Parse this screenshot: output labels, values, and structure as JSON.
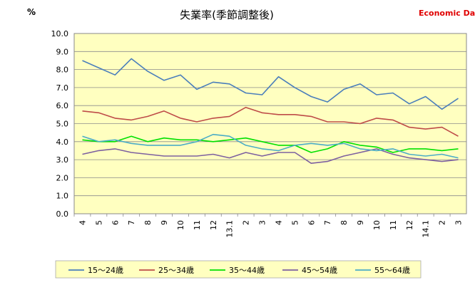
{
  "header": {
    "title": "失業率(季節調整後)",
    "unit": "%",
    "source": "Economic Data",
    "source_color": "#e00000"
  },
  "chart_data": {
    "type": "line",
    "title": "失業率(季節調整後)",
    "ylabel": "%",
    "xlabel": "",
    "ylim": [
      0,
      10
    ],
    "yticks": [
      "0.0",
      "1.0",
      "2.0",
      "3.0",
      "4.0",
      "5.0",
      "6.0",
      "7.0",
      "8.0",
      "9.0",
      "10.0"
    ],
    "grid": true,
    "legend_position": "bottom",
    "plot_background": "#ffffc0",
    "categories": [
      "4",
      "5",
      "6",
      "7",
      "8",
      "9",
      "10",
      "11",
      "12",
      "13.1",
      "2",
      "3",
      "4",
      "5",
      "6",
      "7",
      "8",
      "9",
      "10",
      "11",
      "12",
      "14.1",
      "2",
      "3"
    ],
    "series": [
      {
        "name": "15～24歳",
        "color": "#4a7ebb",
        "values": [
          8.5,
          8.1,
          7.7,
          8.6,
          7.9,
          7.4,
          7.7,
          6.9,
          7.3,
          7.2,
          6.7,
          6.6,
          7.6,
          7.0,
          6.5,
          6.2,
          6.9,
          7.2,
          6.6,
          6.7,
          6.1,
          6.5,
          5.8,
          6.4
        ]
      },
      {
        "name": "25～34歳",
        "color": "#be4b48",
        "values": [
          5.7,
          5.6,
          5.3,
          5.2,
          5.4,
          5.7,
          5.3,
          5.1,
          5.3,
          5.4,
          5.9,
          5.6,
          5.5,
          5.5,
          5.4,
          5.1,
          5.1,
          5.0,
          5.3,
          5.2,
          4.8,
          4.7,
          4.8,
          4.3
        ]
      },
      {
        "name": "35～44歳",
        "color": "#00e000",
        "values": [
          4.1,
          4.0,
          4.0,
          4.3,
          4.0,
          4.2,
          4.1,
          4.1,
          4.0,
          4.1,
          4.2,
          4.0,
          3.8,
          3.8,
          3.4,
          3.6,
          4.0,
          3.8,
          3.7,
          3.4,
          3.6,
          3.6,
          3.5,
          3.6
        ]
      },
      {
        "name": "45～54歳",
        "color": "#7d60a0",
        "values": [
          3.3,
          3.5,
          3.6,
          3.4,
          3.3,
          3.2,
          3.2,
          3.2,
          3.3,
          3.1,
          3.4,
          3.2,
          3.4,
          3.4,
          2.8,
          2.9,
          3.2,
          3.4,
          3.6,
          3.3,
          3.1,
          3.0,
          2.9,
          3.0
        ]
      },
      {
        "name": "55～64歳",
        "color": "#4bacc6",
        "values": [
          4.3,
          4.0,
          4.1,
          3.9,
          3.8,
          3.8,
          3.8,
          4.0,
          4.4,
          4.3,
          3.8,
          3.6,
          3.5,
          3.8,
          3.9,
          3.8,
          3.9,
          3.6,
          3.5,
          3.6,
          3.3,
          3.2,
          3.3,
          3.1
        ]
      }
    ]
  }
}
